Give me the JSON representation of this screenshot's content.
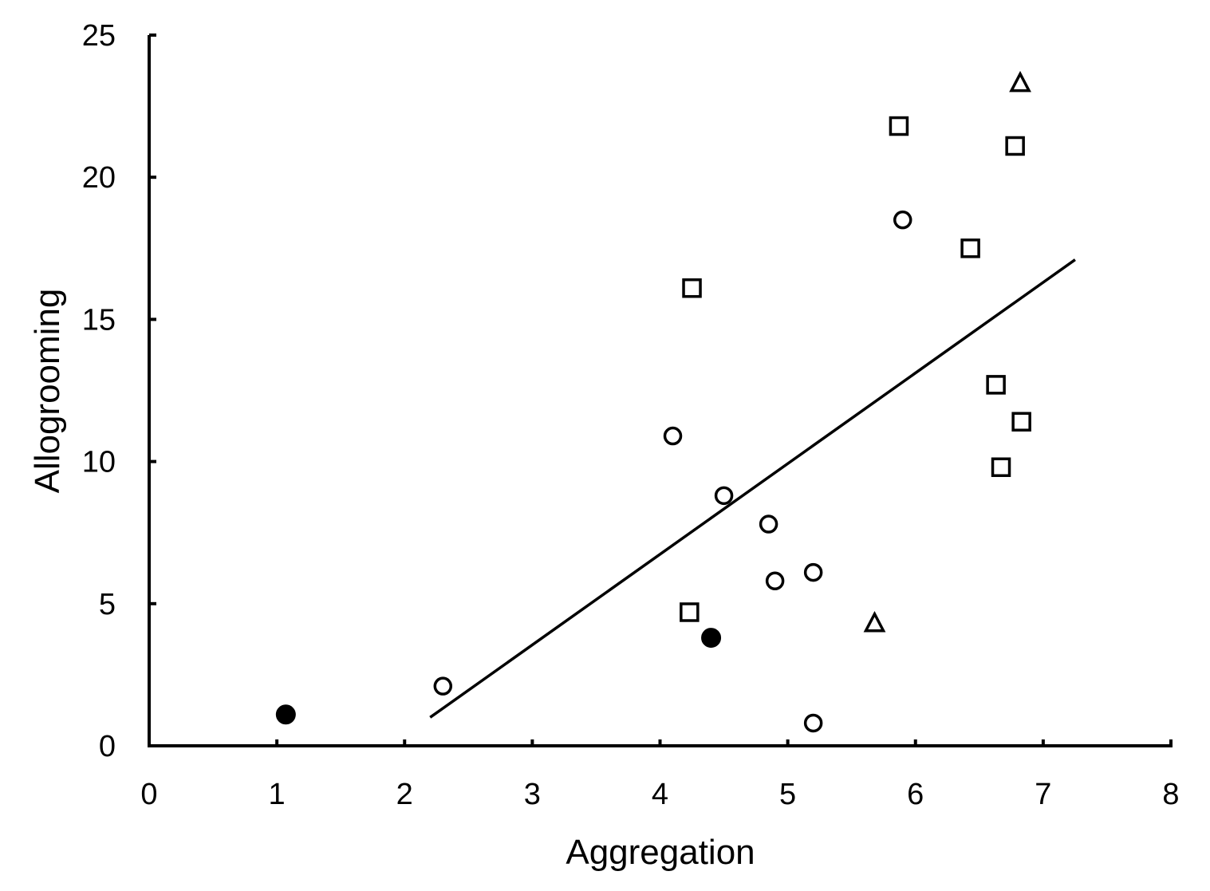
{
  "chart_data": {
    "type": "scatter",
    "title": "",
    "xlabel": "Aggregation",
    "ylabel": "Allogrooming",
    "xlim": [
      0,
      8
    ],
    "ylim": [
      0,
      25
    ],
    "x_ticks": [
      "0",
      "1",
      "2",
      "3",
      "4",
      "5",
      "6",
      "7",
      "8"
    ],
    "y_ticks": [
      "0",
      "5",
      "10",
      "15",
      "20",
      "25"
    ],
    "grid": false,
    "legend": "none",
    "series": [
      {
        "marker": "open-circle",
        "points": [
          [
            2.3,
            2.1
          ],
          [
            4.1,
            10.9
          ],
          [
            4.5,
            8.8
          ],
          [
            4.85,
            7.8
          ],
          [
            4.9,
            5.8
          ],
          [
            5.2,
            6.1
          ],
          [
            5.2,
            0.8
          ],
          [
            5.9,
            18.5
          ]
        ]
      },
      {
        "marker": "filled-circle",
        "points": [
          [
            1.07,
            1.1
          ],
          [
            4.4,
            3.8
          ]
        ]
      },
      {
        "marker": "open-square",
        "points": [
          [
            4.25,
            16.1
          ],
          [
            4.23,
            4.7
          ],
          [
            5.87,
            21.8
          ],
          [
            6.43,
            17.5
          ],
          [
            6.63,
            12.7
          ],
          [
            6.67,
            9.8
          ],
          [
            6.78,
            21.1
          ],
          [
            6.83,
            11.4
          ]
        ]
      },
      {
        "marker": "open-triangle",
        "points": [
          [
            5.68,
            4.3
          ],
          [
            6.82,
            23.3
          ]
        ]
      }
    ],
    "trendline": {
      "x": [
        2.2,
        7.25
      ],
      "y": [
        1.0,
        17.1
      ]
    }
  },
  "colors": {
    "axis": "#000000",
    "marker": "#000000",
    "background": "#ffffff"
  }
}
